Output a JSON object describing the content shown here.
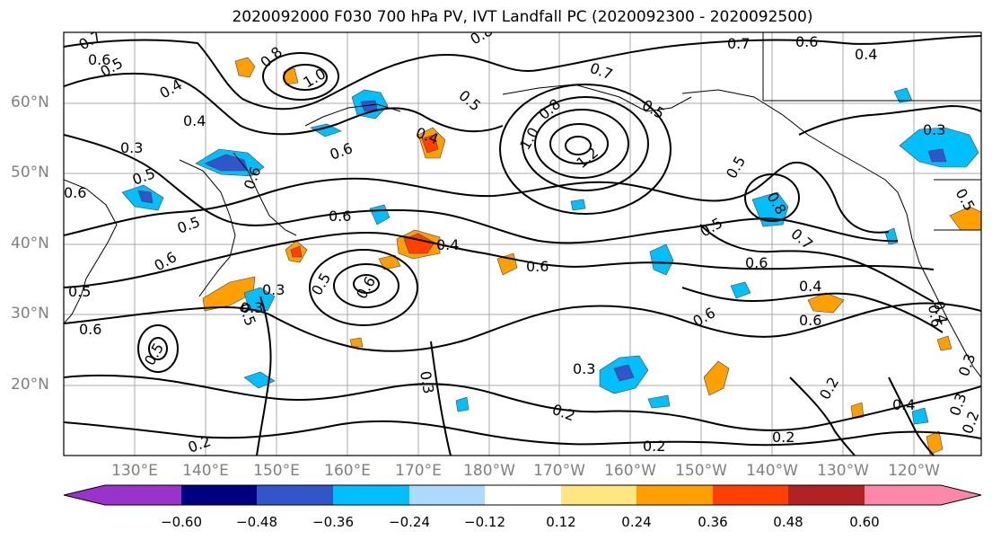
{
  "title": "2020092000 F030 700 hPa PV, IVT Landfall PC (2020092300 - 2020092500)",
  "lat_labels": [
    "60°N",
    "50°N",
    "40°N",
    "30°N",
    "20°N"
  ],
  "lon_labels": [
    "130°E",
    "140°E",
    "150°E",
    "160°E",
    "170°E",
    "180°W",
    "170°W",
    "160°W",
    "150°W",
    "140°W",
    "130°W",
    "120°W"
  ],
  "colorbar": {
    "colors": [
      "#9933cc",
      "#000080",
      "#3355cc",
      "#00bfff",
      "#add8ff",
      "#ffffff",
      "#ffe680",
      "#ffa000",
      "#ff4000",
      "#b22222",
      "#ff88aa"
    ],
    "ticks": [
      "−0.60",
      "−0.48",
      "−0.36",
      "−0.24",
      "−0.12",
      "0.12",
      "0.24",
      "0.36",
      "0.48",
      "0.60"
    ]
  },
  "contour_labels": [
    "0.7",
    "0.6",
    "0.5",
    "0.4",
    "0.3",
    "0.8",
    "1.0",
    "0.6",
    "0.5",
    "0.4",
    "0.6",
    "0.5",
    "0.8",
    "1.0",
    "1.2",
    "0.7",
    "0.6",
    "0.4",
    "0.4",
    "0.3",
    "0.6",
    "0.5",
    "0.6",
    "0.6",
    "0.5",
    "0.6",
    "0.4",
    "0.5",
    "0.3",
    "0.5",
    "0.3",
    "0.6",
    "0.5",
    "0.6",
    "0.6",
    "0.4",
    "0.6",
    "0.5",
    "0.6",
    "0.5",
    "0.5",
    "0.4",
    "0.6",
    "0.5",
    "0.8",
    "0.7",
    "0.7",
    "0.8",
    "0.3",
    "0.3",
    "0.2",
    "0.2",
    "0.2",
    "0.2",
    "0.4",
    "0.3",
    "0.2",
    "0.3",
    "0.2"
  ]
}
